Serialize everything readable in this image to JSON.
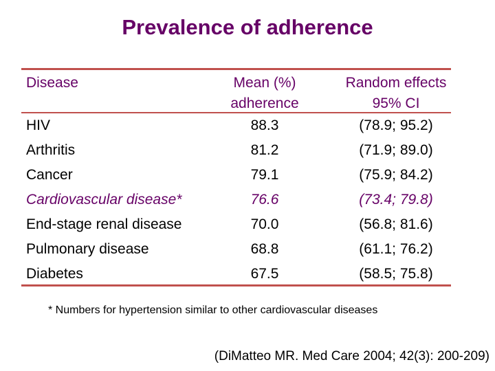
{
  "title": "Prevalence of adherence",
  "table": {
    "headers": {
      "disease": "Disease",
      "mean_line1": "Mean (%)",
      "mean_line2": "adherence",
      "ci_line1": "Random effects",
      "ci_line2": "95% CI"
    },
    "rows": [
      {
        "disease": "HIV",
        "mean": "88.3",
        "ci": "(78.9; 95.2)"
      },
      {
        "disease": "Arthritis",
        "mean": "81.2",
        "ci": "(71.9; 89.0)"
      },
      {
        "disease": "Cancer",
        "mean": "79.1",
        "ci": "(75.9; 84.2)"
      },
      {
        "disease": "Cardiovascular disease*",
        "mean": "76.6",
        "ci": "(73.4; 79.8)"
      },
      {
        "disease": "End-stage renal disease",
        "mean": "70.0",
        "ci": "(56.8; 81.6)"
      },
      {
        "disease": "Pulmonary disease",
        "mean": "68.8",
        "ci": "(61.1; 76.2)"
      },
      {
        "disease": "Diabetes",
        "mean": "67.5",
        "ci": "(58.5; 75.8)"
      }
    ]
  },
  "footnote": "* Numbers for hypertension similar to other cardiovascular diseases",
  "citation": "(DiMatteo MR. Med Care 2004; 42(3): 200-209)",
  "colors": {
    "title": "#660066",
    "rules": "#c0504d",
    "highlight_row": "#660066"
  }
}
